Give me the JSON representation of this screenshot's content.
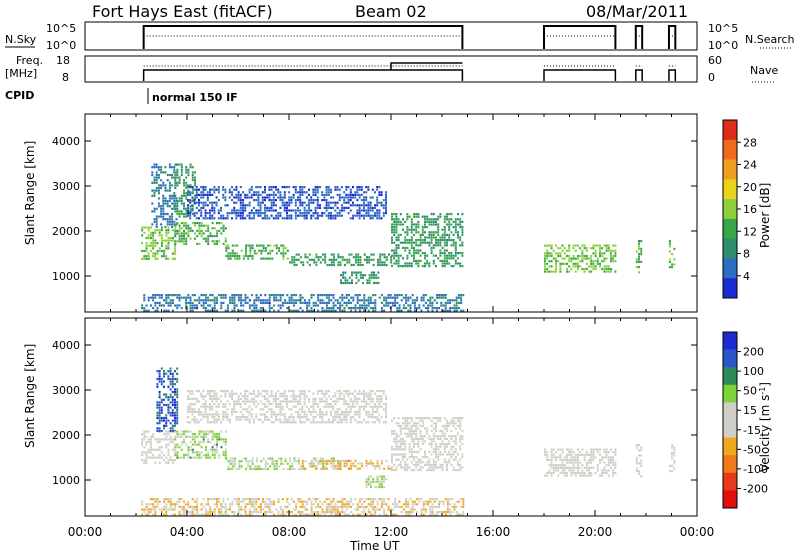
{
  "header": {
    "station": "Fort Hays East (fitACF)",
    "beam": "Beam 02",
    "date": "08/Mar/2011"
  },
  "param_panels": {
    "nsky_label": "N.Sky",
    "nsky_ticks": [
      "10^5",
      "10^0"
    ],
    "nsearch_label": "N.Search",
    "nsearch_ticks": [
      "10^5",
      "10^0"
    ],
    "freq_label_1": "Freq.",
    "freq_label_2": "[MHz]",
    "freq_ticks": [
      "18",
      "8"
    ],
    "nave_label": "Nave",
    "nave_ticks": [
      "60",
      "0"
    ],
    "cpid_label": "CPID",
    "cpid_value": "normal 150 IF"
  },
  "axes": {
    "xlabel": "Time UT",
    "ylabel": "Slant Range [km]",
    "xticks": [
      "00:00",
      "04:00",
      "08:00",
      "12:00",
      "16:00",
      "20:00",
      "00:00"
    ],
    "yticks": [
      "4000",
      "3000",
      "2000",
      "1000"
    ],
    "xlim_hours": [
      0,
      24
    ],
    "ylim_km": [
      200,
      4600
    ]
  },
  "colors": {
    "power": [
      "#1e2bd4",
      "#2d6ec0",
      "#2e8f6e",
      "#3aa64a",
      "#8ccf3a",
      "#e8d21a",
      "#f0a020",
      "#ef6a1a",
      "#e02a1a"
    ],
    "velocity": [
      "#1e2bd4",
      "#2a56c8",
      "#2e8a5a",
      "#7ed23a",
      "#cfcfc8",
      "#cfcfc8",
      "#f0a820",
      "#f07a1a",
      "#e83a1a",
      "#e01010"
    ]
  },
  "chart_data": [
    {
      "type": "heatmap",
      "title": "Power [dB]",
      "xlabel": "Time UT",
      "ylabel": "Slant Range [km]",
      "xlim": [
        0,
        24
      ],
      "ylim": [
        200,
        4600
      ],
      "colorbar_label": "Power [dB]",
      "colorbar_ticks": [
        "28",
        "24",
        "20",
        "16",
        "12",
        "8",
        "4"
      ],
      "colorbar_range": [
        0,
        30
      ],
      "regions": [
        {
          "t": [
            2.2,
            3.5
          ],
          "r": [
            1400,
            2100
          ],
          "v": 14
        },
        {
          "t": [
            2.6,
            3.6
          ],
          "r": [
            2100,
            3500
          ],
          "v": 6
        },
        {
          "t": [
            3.5,
            4.3
          ],
          "r": [
            2300,
            3500
          ],
          "v": 10
        },
        {
          "t": [
            3.5,
            5.5
          ],
          "r": [
            1700,
            2200
          ],
          "v": 12
        },
        {
          "t": [
            5.5,
            8.0
          ],
          "r": [
            1400,
            1700
          ],
          "v": 12
        },
        {
          "t": [
            8.0,
            12.0
          ],
          "r": [
            1250,
            1500
          ],
          "v": 10
        },
        {
          "t": [
            4.0,
            11.8
          ],
          "r": [
            2300,
            3000
          ],
          "v": 4
        },
        {
          "t": [
            10.0,
            11.5
          ],
          "r": [
            850,
            1100
          ],
          "v": 8
        },
        {
          "t": [
            12.0,
            14.8
          ],
          "r": [
            1200,
            2400
          ],
          "v": 10
        },
        {
          "t": [
            18.0,
            20.8
          ],
          "r": [
            1100,
            1700
          ],
          "v": 14
        },
        {
          "t": [
            21.6,
            21.8
          ],
          "r": [
            1100,
            1800
          ],
          "v": 12
        },
        {
          "t": [
            22.9,
            23.1
          ],
          "r": [
            1200,
            1800
          ],
          "v": 14
        },
        {
          "t": [
            2.2,
            14.8
          ],
          "r": [
            250,
            600
          ],
          "v": 6
        }
      ]
    },
    {
      "type": "heatmap",
      "title": "Velocity [m s^-1]",
      "xlabel": "Time UT",
      "ylabel": "Slant Range [km]",
      "xlim": [
        0,
        24
      ],
      "ylim": [
        200,
        4600
      ],
      "colorbar_label": "Velocity [m s^-1]",
      "colorbar_ticks": [
        "200",
        "100",
        "50",
        "15",
        "-15",
        "-50",
        "-100",
        "-200"
      ],
      "colorbar_range": [
        -250,
        250
      ],
      "regions": [
        {
          "t": [
            2.2,
            3.5
          ],
          "r": [
            1400,
            2100
          ],
          "v": 0
        },
        {
          "t": [
            2.8,
            3.6
          ],
          "r": [
            2100,
            3500
          ],
          "v": 180
        },
        {
          "t": [
            3.5,
            5.5
          ],
          "r": [
            1500,
            2100
          ],
          "v": 60
        },
        {
          "t": [
            5.5,
            10.0
          ],
          "r": [
            1250,
            1500
          ],
          "v": 40
        },
        {
          "t": [
            8.5,
            12.0
          ],
          "r": [
            1250,
            1450
          ],
          "v": -60
        },
        {
          "t": [
            4.0,
            11.8
          ],
          "r": [
            2300,
            3000
          ],
          "v": 0
        },
        {
          "t": [
            11.0,
            11.8
          ],
          "r": [
            850,
            1100
          ],
          "v": 50
        },
        {
          "t": [
            12.0,
            14.8
          ],
          "r": [
            1200,
            2400
          ],
          "v": 0
        },
        {
          "t": [
            18.0,
            20.8
          ],
          "r": [
            1100,
            1700
          ],
          "v": 0
        },
        {
          "t": [
            21.6,
            21.8
          ],
          "r": [
            1100,
            1800
          ],
          "v": 0
        },
        {
          "t": [
            22.9,
            23.1
          ],
          "r": [
            1200,
            1800
          ],
          "v": 0
        },
        {
          "t": [
            2.2,
            14.8
          ],
          "r": [
            250,
            600
          ],
          "v": -40
        }
      ]
    }
  ]
}
